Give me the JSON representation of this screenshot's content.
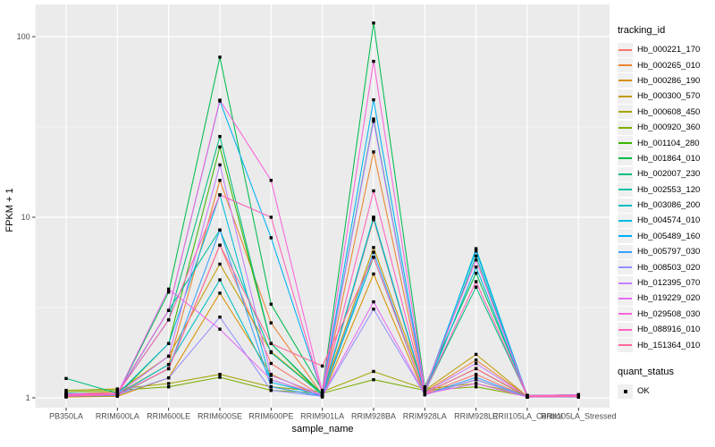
{
  "figure": {
    "y_axis": {
      "title": "FPKM + 1",
      "ticks": [
        {
          "label": "1",
          "value": 1
        },
        {
          "label": "10",
          "value": 10
        },
        {
          "label": "100",
          "value": 100
        }
      ]
    },
    "x_axis": {
      "title": "sample_name"
    },
    "legend": {
      "tracking_title": "tracking_id",
      "quant_title": "quant_status",
      "quant_items": [
        {
          "label": "OK",
          "shape": "black-square"
        }
      ]
    },
    "colors": {
      "panel_bg": "#EBEBEB",
      "grid": "#FFFFFF",
      "point": "#000000",
      "tick_text": "#4D4D4D",
      "axis_text": "#000000"
    }
  },
  "chart_data": {
    "type": "line",
    "title": "",
    "xlabel": "sample_name",
    "ylabel": "FPKM + 1",
    "y_scale": "log10",
    "ylim": [
      0.9,
      150
    ],
    "yticks": [
      1,
      10,
      100
    ],
    "y_minor_ticks": [
      3.1623,
      31.623
    ],
    "grid": true,
    "legend_position": "right",
    "point_shape": "square",
    "point_color": "#000000",
    "quant_status_value": "OK",
    "categories": [
      "PB350LA",
      "RRIM600LA",
      "RRIM600LE",
      "RRIM600SE",
      "RRIM600PE",
      "RRIM901LA",
      "RRIM928BA",
      "RRIM928LA",
      "RRIM928LE",
      "RRII105LA_Control",
      "RRII105LA_Stressed"
    ],
    "series": [
      {
        "name": "Hb_000221_170",
        "color": "#F8766D",
        "values": [
          1.02,
          1.03,
          1.45,
          7.0,
          1.55,
          1.02,
          9.7,
          1.05,
          1.35,
          1.01,
          1.02
        ]
      },
      {
        "name": "Hb_000265_010",
        "color": "#EA8331",
        "values": [
          1.03,
          1.05,
          1.53,
          16.0,
          2.6,
          1.04,
          23.0,
          1.08,
          1.62,
          1.02,
          1.01
        ]
      },
      {
        "name": "Hb_000286_190",
        "color": "#D89000",
        "values": [
          1.01,
          1.02,
          1.29,
          3.8,
          1.35,
          1.01,
          4.85,
          1.04,
          1.26,
          1.01,
          1.01
        ]
      },
      {
        "name": "Hb_000300_570",
        "color": "#C09B00",
        "values": [
          1.05,
          1.08,
          1.7,
          5.5,
          1.8,
          1.05,
          6.8,
          1.1,
          1.74,
          1.02,
          1.03
        ]
      },
      {
        "name": "Hb_000608_450",
        "color": "#A3A500",
        "values": [
          1.1,
          1.12,
          1.2,
          1.35,
          1.15,
          1.08,
          1.4,
          1.12,
          1.2,
          1.03,
          1.04
        ]
      },
      {
        "name": "Hb_000920_360",
        "color": "#7CAE00",
        "values": [
          1.08,
          1.1,
          1.15,
          1.3,
          1.1,
          1.06,
          1.26,
          1.1,
          1.15,
          1.02,
          1.03
        ]
      },
      {
        "name": "Hb_001104_280",
        "color": "#39B600",
        "values": [
          1.02,
          1.03,
          2.0,
          24.5,
          2.0,
          1.03,
          10.0,
          1.06,
          1.45,
          1.01,
          1.02
        ]
      },
      {
        "name": "Hb_001864_010",
        "color": "#00BB4E",
        "values": [
          1.05,
          1.04,
          3.85,
          77.0,
          3.3,
          1.1,
          119.0,
          1.15,
          4.9,
          1.03,
          1.04
        ]
      },
      {
        "name": "Hb_002007_230",
        "color": "#00BF7D",
        "values": [
          1.28,
          1.06,
          2.7,
          28.0,
          2.0,
          1.05,
          35.0,
          1.08,
          4.1,
          1.02,
          1.02
        ]
      },
      {
        "name": "Hb_002553_120",
        "color": "#00C1A3",
        "values": [
          1.04,
          1.05,
          3.05,
          8.5,
          1.78,
          1.04,
          9.9,
          1.07,
          6.1,
          1.02,
          1.03
        ]
      },
      {
        "name": "Hb_003086_200",
        "color": "#00BFC4",
        "values": [
          1.03,
          1.04,
          1.53,
          4.5,
          1.26,
          1.02,
          6.0,
          1.05,
          6.7,
          1.02,
          1.02
        ]
      },
      {
        "name": "Hb_004574_010",
        "color": "#00BAE0",
        "values": [
          1.06,
          1.05,
          2.0,
          13.3,
          1.22,
          1.03,
          10.0,
          1.06,
          5.3,
          1.02,
          1.03
        ]
      },
      {
        "name": "Hb_005489_160",
        "color": "#00B0F6",
        "values": [
          1.04,
          1.06,
          3.05,
          44.0,
          7.7,
          1.06,
          44.7,
          1.1,
          6.5,
          1.03,
          1.04
        ]
      },
      {
        "name": "Hb_005797_030",
        "color": "#35A2FF",
        "values": [
          1.02,
          1.03,
          1.45,
          8.5,
          1.15,
          1.02,
          6.4,
          1.04,
          1.3,
          1.01,
          1.02
        ]
      },
      {
        "name": "Hb_008503_020",
        "color": "#9590FF",
        "values": [
          1.03,
          1.04,
          1.29,
          2.8,
          1.1,
          1.02,
          3.1,
          1.04,
          1.26,
          1.01,
          1.01
        ]
      },
      {
        "name": "Hb_012395_070",
        "color": "#C77CFF",
        "values": [
          1.04,
          1.05,
          1.7,
          19.5,
          1.33,
          1.04,
          34.0,
          1.07,
          1.55,
          1.02,
          1.02
        ]
      },
      {
        "name": "Hb_019229_020",
        "color": "#E76BF3",
        "values": [
          1.03,
          1.05,
          4.0,
          2.4,
          1.26,
          1.03,
          3.4,
          1.05,
          1.2,
          1.01,
          1.02
        ]
      },
      {
        "name": "Hb_029508_030",
        "color": "#FA62DB",
        "values": [
          1.05,
          1.06,
          3.05,
          44.5,
          16.0,
          1.08,
          73.0,
          1.12,
          5.8,
          1.03,
          1.04
        ]
      },
      {
        "name": "Hb_088916_010",
        "color": "#FF62BC",
        "values": [
          1.04,
          1.06,
          2.7,
          13.3,
          10.0,
          1.05,
          14.0,
          1.08,
          4.4,
          1.02,
          1.03
        ]
      },
      {
        "name": "Hb_151364_010",
        "color": "#FF6A98",
        "values": [
          1.02,
          1.04,
          1.45,
          7.0,
          2.0,
          1.5,
          6.0,
          1.06,
          1.45,
          1.02,
          1.02
        ]
      }
    ]
  }
}
